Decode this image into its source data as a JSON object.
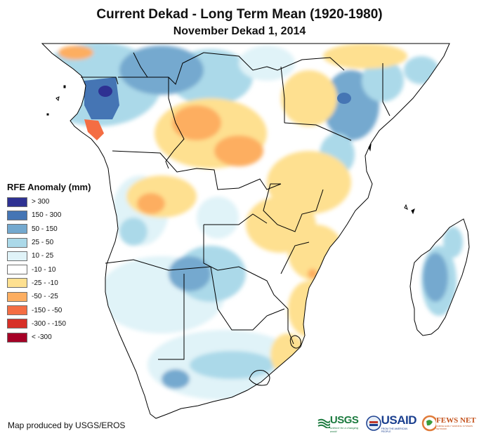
{
  "header": {
    "title": "Current Dekad - Long Term Mean (1920-1980)",
    "subtitle": "November Dekad 1, 2014"
  },
  "legend": {
    "title": "RFE Anomaly (mm)",
    "items": [
      {
        "label": "> 300",
        "color": "#2e3192"
      },
      {
        "label": "150 - 300",
        "color": "#4575b4"
      },
      {
        "label": "50 - 150",
        "color": "#74a9cf"
      },
      {
        "label": "25 - 50",
        "color": "#abd9e9"
      },
      {
        "label": "10 - 25",
        "color": "#e0f3f8"
      },
      {
        "label": "-10 - 10",
        "color": "#ffffff"
      },
      {
        "label": "-25 - -10",
        "color": "#fee090"
      },
      {
        "label": "-50 - -25",
        "color": "#fdae61"
      },
      {
        "label": "-150 - -50",
        "color": "#f46d43"
      },
      {
        "label": "-300 - -150",
        "color": "#d73027"
      },
      {
        "label": "< -300",
        "color": "#a50026"
      }
    ]
  },
  "footer": {
    "credit": "Map produced by USGS/EROS",
    "logos": {
      "usgs": "USGS",
      "usgs_tagline": "science for a changing world",
      "usaid": "USAID",
      "usaid_tagline": "FROM THE AMERICAN PEOPLE",
      "fewsnet": "FEWS NET",
      "fewsnet_tagline": "FAMINE EARLY WARNING SYSTEMS NETWORK"
    }
  },
  "map": {
    "region": "Central, Eastern and Southern Africa",
    "variable": "Rainfall estimate anomaly",
    "units": "mm",
    "colors": {
      "border": "#000000",
      "ocean": "#ffffff"
    }
  }
}
